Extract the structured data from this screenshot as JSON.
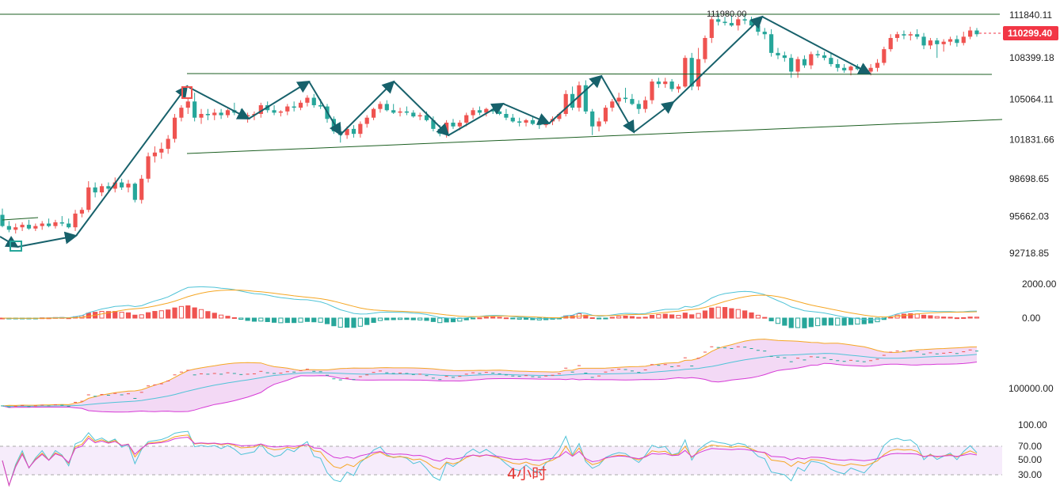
{
  "chart_data": {
    "type": "candlestick",
    "period_label": "4小时",
    "price_axis": {
      "ticks": [
        "111840.11",
        "108399.18",
        "105064.11",
        "101831.66",
        "98698.65",
        "95662.03",
        "92718.85"
      ],
      "tick_values": [
        111840.11,
        108399.18,
        105064.11,
        101831.66,
        98698.65,
        95662.03,
        92718.85
      ]
    },
    "current_price": "110299.40",
    "high_annotation": "111980.00",
    "macd_axis": {
      "ticks": [
        "2000.00",
        "0.00"
      ]
    },
    "ma_axis": {
      "ticks": [
        "100000.00"
      ]
    },
    "rsi_axis": {
      "ticks": [
        "100.00",
        "70.00",
        "50.00",
        "30.00"
      ]
    },
    "colors": {
      "up": "#ef5350",
      "down": "#26a69a",
      "trendline": "#1b5e20",
      "arrow": "#17616b",
      "price_tag": "#f23645"
    },
    "candles": [
      [
        95800,
        96300,
        94800,
        94900
      ],
      [
        94900,
        95300,
        94400,
        94600
      ],
      [
        94600,
        95100,
        94300,
        94800
      ],
      [
        94800,
        95200,
        94500,
        95000
      ],
      [
        95000,
        95400,
        94600,
        94700
      ],
      [
        94700,
        95100,
        94500,
        94900
      ],
      [
        94900,
        95300,
        94600,
        95100
      ],
      [
        95100,
        95500,
        94800,
        94900
      ],
      [
        94900,
        95400,
        94700,
        95200
      ],
      [
        95200,
        95700,
        94900,
        95100
      ],
      [
        95100,
        95500,
        94700,
        94800
      ],
      [
        94800,
        96200,
        94500,
        95900
      ],
      [
        95900,
        96400,
        95600,
        96200
      ],
      [
        96200,
        98500,
        96000,
        98000
      ],
      [
        98000,
        98400,
        97200,
        97600
      ],
      [
        97600,
        98300,
        97300,
        98100
      ],
      [
        98100,
        98400,
        97700,
        97900
      ],
      [
        97900,
        98800,
        97600,
        98400
      ],
      [
        98400,
        98700,
        97800,
        98000
      ],
      [
        98000,
        98600,
        97600,
        98300
      ],
      [
        98300,
        98400,
        96800,
        97000
      ],
      [
        97000,
        99000,
        96700,
        98700
      ],
      [
        98700,
        100800,
        98400,
        100500
      ],
      [
        100500,
        101300,
        100000,
        100800
      ],
      [
        100800,
        101600,
        100300,
        101100
      ],
      [
        101100,
        102200,
        100700,
        101900
      ],
      [
        101900,
        103900,
        101600,
        103600
      ],
      [
        103600,
        104600,
        103300,
        104400
      ],
      [
        104400,
        105200,
        103900,
        104900
      ],
      [
        104900,
        105600,
        103300,
        103600
      ],
      [
        103600,
        104300,
        103100,
        103900
      ],
      [
        103900,
        104300,
        103400,
        103800
      ],
      [
        103800,
        104300,
        103400,
        104000
      ],
      [
        104000,
        104300,
        103500,
        103800
      ],
      [
        103800,
        104300,
        103600,
        104200
      ],
      [
        104200,
        104800,
        103800,
        104000
      ],
      [
        104000,
        104300,
        103500,
        103700
      ],
      [
        103700,
        104000,
        103200,
        103800
      ],
      [
        103800,
        104100,
        103400,
        103900
      ],
      [
        103900,
        104800,
        103600,
        104600
      ],
      [
        104600,
        104900,
        104000,
        104200
      ],
      [
        104200,
        104600,
        103800,
        104000
      ],
      [
        104000,
        104200,
        103700,
        104100
      ],
      [
        104100,
        104700,
        103800,
        104500
      ],
      [
        104500,
        104900,
        104100,
        104400
      ],
      [
        104400,
        105000,
        104200,
        104800
      ],
      [
        104800,
        105400,
        104500,
        105200
      ],
      [
        105200,
        105500,
        104400,
        104600
      ],
      [
        104600,
        105100,
        104300,
        104500
      ],
      [
        104500,
        104700,
        103200,
        103500
      ],
      [
        103500,
        103700,
        102300,
        102500
      ],
      [
        102500,
        102900,
        101600,
        102200
      ],
      [
        102200,
        102900,
        101900,
        102700
      ],
      [
        102700,
        103000,
        102000,
        102300
      ],
      [
        102300,
        103300,
        102000,
        103100
      ],
      [
        103100,
        103800,
        102800,
        103600
      ],
      [
        103600,
        104400,
        103400,
        104300
      ],
      [
        104300,
        104900,
        104000,
        104700
      ],
      [
        104700,
        105000,
        104100,
        104200
      ],
      [
        104200,
        104700,
        103900,
        104000
      ],
      [
        104000,
        104400,
        103700,
        104100
      ],
      [
        104100,
        104500,
        103800,
        104000
      ],
      [
        104000,
        104200,
        103600,
        103700
      ],
      [
        103700,
        104000,
        103400,
        103800
      ],
      [
        103800,
        104100,
        103300,
        103400
      ],
      [
        103400,
        103700,
        102500,
        102700
      ],
      [
        102700,
        103000,
        102100,
        102300
      ],
      [
        102300,
        103400,
        102000,
        103200
      ],
      [
        103200,
        103500,
        102700,
        102900
      ],
      [
        102900,
        103400,
        102600,
        103200
      ],
      [
        103200,
        104000,
        102900,
        103800
      ],
      [
        103800,
        104400,
        103500,
        104200
      ],
      [
        104200,
        104500,
        103800,
        104000
      ],
      [
        104000,
        104400,
        103700,
        104300
      ],
      [
        104300,
        104600,
        103900,
        104100
      ],
      [
        104100,
        104500,
        103800,
        103900
      ],
      [
        103900,
        104300,
        103400,
        103600
      ],
      [
        103600,
        103900,
        103200,
        103300
      ],
      [
        103300,
        103600,
        102900,
        103200
      ],
      [
        103200,
        103500,
        102900,
        103400
      ],
      [
        103400,
        103700,
        103000,
        103100
      ],
      [
        103100,
        103400,
        102700,
        103000
      ],
      [
        103000,
        103400,
        102800,
        103300
      ],
      [
        103300,
        103700,
        103000,
        103500
      ],
      [
        103500,
        104000,
        103300,
        103900
      ],
      [
        103900,
        105800,
        103700,
        105500
      ],
      [
        105500,
        106100,
        104200,
        104400
      ],
      [
        104400,
        106500,
        104100,
        106200
      ],
      [
        106200,
        106600,
        103900,
        104100
      ],
      [
        104100,
        104300,
        102200,
        102900
      ],
      [
        102900,
        103600,
        102500,
        103300
      ],
      [
        103300,
        104600,
        103100,
        104400
      ],
      [
        104400,
        105100,
        104100,
        104900
      ],
      [
        104900,
        105600,
        104500,
        105200
      ],
      [
        105200,
        106000,
        104800,
        105100
      ],
      [
        105100,
        105500,
        104600,
        104700
      ],
      [
        104700,
        105000,
        103900,
        104300
      ],
      [
        104300,
        105300,
        104000,
        105000
      ],
      [
        105000,
        106700,
        104700,
        106500
      ],
      [
        106500,
        106800,
        106000,
        106300
      ],
      [
        106300,
        106800,
        106000,
        106500
      ],
      [
        106500,
        106700,
        105700,
        105900
      ],
      [
        105900,
        106300,
        105600,
        106100
      ],
      [
        106100,
        108600,
        106000,
        108400
      ],
      [
        108400,
        108800,
        105800,
        106100
      ],
      [
        106100,
        109200,
        105800,
        108300
      ],
      [
        108300,
        110200,
        108000,
        110000
      ],
      [
        110000,
        111700,
        109600,
        111500
      ],
      [
        111500,
        111980,
        111000,
        111300
      ],
      [
        111300,
        111700,
        111000,
        111200
      ],
      [
        111200,
        111800,
        110900,
        111000
      ],
      [
        111000,
        111700,
        110600,
        111500
      ],
      [
        111500,
        111900,
        111100,
        111400
      ],
      [
        111400,
        111700,
        110800,
        111000
      ],
      [
        111000,
        111200,
        110200,
        110500
      ],
      [
        110500,
        110800,
        109900,
        110300
      ],
      [
        110300,
        110700,
        108500,
        108800
      ],
      [
        108800,
        109200,
        108300,
        108600
      ],
      [
        108600,
        108900,
        108100,
        108400
      ],
      [
        108400,
        108700,
        106800,
        107300
      ],
      [
        107300,
        108500,
        106800,
        108300
      ],
      [
        108300,
        108600,
        107600,
        107800
      ],
      [
        107800,
        108900,
        107500,
        108700
      ],
      [
        108700,
        109000,
        108400,
        108600
      ],
      [
        108600,
        108900,
        108200,
        108400
      ],
      [
        108400,
        108800,
        107700,
        107900
      ],
      [
        107900,
        108300,
        107300,
        107600
      ],
      [
        107600,
        107900,
        107200,
        107400
      ],
      [
        107400,
        107800,
        107000,
        107700
      ],
      [
        107700,
        107900,
        107400,
        107500
      ],
      [
        107500,
        107900,
        107100,
        107300
      ],
      [
        107300,
        107900,
        107000,
        107600
      ],
      [
        107600,
        108300,
        107300,
        108000
      ],
      [
        108000,
        109300,
        107800,
        109100
      ],
      [
        109100,
        110300,
        108900,
        110000
      ],
      [
        110000,
        110500,
        109700,
        110300
      ],
      [
        110300,
        110600,
        109900,
        110200
      ],
      [
        110200,
        110500,
        109800,
        110300
      ],
      [
        110300,
        110700,
        109900,
        110100
      ],
      [
        110100,
        110400,
        109100,
        109400
      ],
      [
        109400,
        110000,
        109100,
        109800
      ],
      [
        109800,
        110000,
        108400,
        109500
      ],
      [
        109500,
        109900,
        108900,
        109700
      ],
      [
        109700,
        110100,
        109400,
        109900
      ],
      [
        109900,
        110200,
        109300,
        109600
      ],
      [
        109600,
        110500,
        109400,
        110100
      ],
      [
        110100,
        110900,
        109900,
        110600
      ],
      [
        110600,
        110800,
        110100,
        110299
      ]
    ]
  }
}
